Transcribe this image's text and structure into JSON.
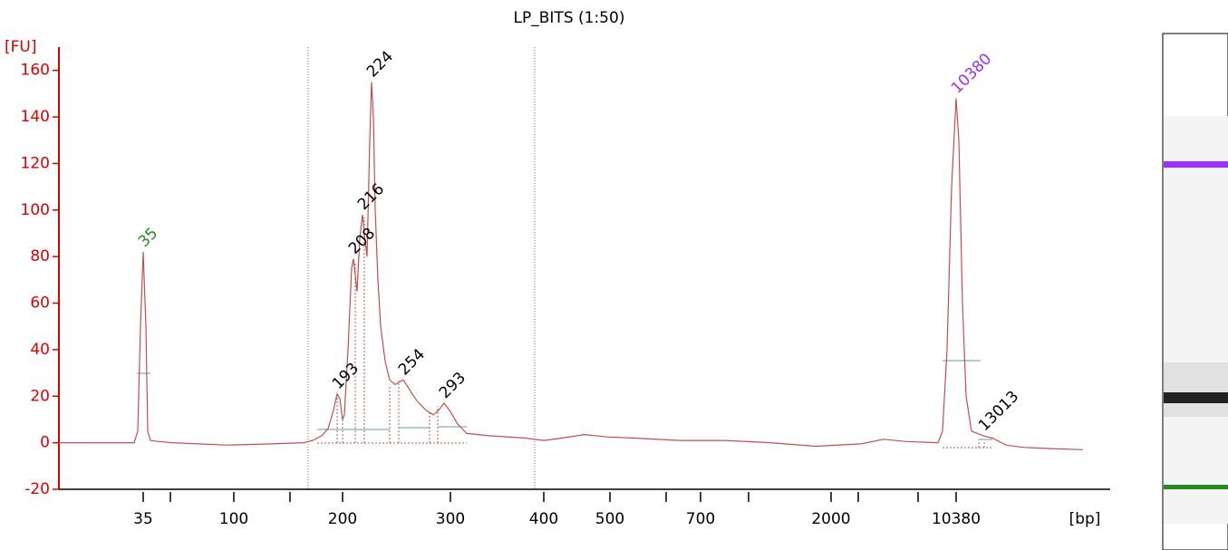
{
  "chart_data": {
    "type": "line",
    "title": "LP_BITS (1:50)",
    "y_label": "[FU]",
    "x_label": "[bp]",
    "color": "#c0504d",
    "axis_color": "#dd0000",
    "xlim": [
      0,
      1160
    ],
    "ylim": [
      -20,
      170
    ],
    "yticks": [
      -20,
      0,
      20,
      40,
      60,
      80,
      100,
      120,
      140,
      160
    ],
    "xticks": [
      {
        "value": 93,
        "label": "35"
      },
      {
        "value": 123,
        "label": null
      },
      {
        "value": 193,
        "label": "100"
      },
      {
        "value": 255,
        "label": null
      },
      {
        "value": 313,
        "label": "200"
      },
      {
        "value": 432,
        "label": "300"
      },
      {
        "value": 535,
        "label": "400"
      },
      {
        "value": 608,
        "label": "500"
      },
      {
        "value": 670,
        "label": null
      },
      {
        "value": 708,
        "label": "700"
      },
      {
        "value": 761,
        "label": null
      },
      {
        "value": 852,
        "label": "2000"
      },
      {
        "value": 882,
        "label": null
      },
      {
        "value": 948,
        "label": null
      },
      {
        "value": 990,
        "label": "10380"
      }
    ],
    "x": [
      0,
      83,
      87,
      90,
      93,
      96,
      98,
      101,
      110,
      125,
      185,
      235,
      270,
      280,
      290,
      297,
      303,
      307,
      310,
      313,
      315,
      319,
      323,
      325,
      327,
      329,
      332,
      335,
      337,
      340,
      343,
      345,
      347,
      349,
      352,
      355,
      360,
      365,
      371,
      375,
      380,
      385,
      395,
      405,
      413,
      419,
      425,
      431,
      440,
      450,
      475,
      515,
      535,
      555,
      580,
      605,
      635,
      685,
      735,
      785,
      835,
      885,
      910,
      935,
      970,
      975,
      980,
      985,
      990,
      993,
      997,
      1001,
      1007,
      1020,
      1030,
      1045,
      1065,
      1095,
      1130
    ],
    "values": [
      0,
      0,
      5,
      50,
      82,
      50,
      5,
      1,
      0.5,
      0,
      -1,
      -0.5,
      0,
      1,
      3,
      6,
      14,
      21,
      19,
      10,
      12,
      40,
      75,
      79,
      72,
      65,
      88,
      98,
      90,
      80,
      130,
      155,
      140,
      100,
      70,
      50,
      35,
      27,
      25,
      26,
      27,
      24,
      18,
      14,
      12,
      14,
      17,
      14,
      8,
      4,
      3,
      2,
      1,
      2,
      3.5,
      2.5,
      2,
      1,
      1,
      0,
      -1.5,
      -0.5,
      1.5,
      0.5,
      0,
      5,
      40,
      110,
      148,
      130,
      60,
      20,
      5,
      3,
      2,
      -1,
      -2,
      -2.5,
      -3
    ],
    "peaks": [
      {
        "label": "35",
        "x": 93,
        "y": 82,
        "color": "#228b22"
      },
      {
        "label": "193",
        "x": 307,
        "y": 21,
        "color": "#000000"
      },
      {
        "label": "208",
        "x": 325,
        "y": 79,
        "color": "#000000"
      },
      {
        "label": "216",
        "x": 335,
        "y": 98,
        "color": "#000000"
      },
      {
        "label": "224",
        "x": 345,
        "y": 155,
        "color": "#000000"
      },
      {
        "label": "254",
        "x": 380,
        "y": 27,
        "color": "#000000"
      },
      {
        "label": "293",
        "x": 425,
        "y": 17,
        "color": "#000000"
      },
      {
        "label": "10380",
        "x": 990,
        "y": 148,
        "color": "#9b30ff"
      },
      {
        "label": "13013",
        "x": 1020,
        "y": 3,
        "color": "#000000"
      }
    ]
  }
}
